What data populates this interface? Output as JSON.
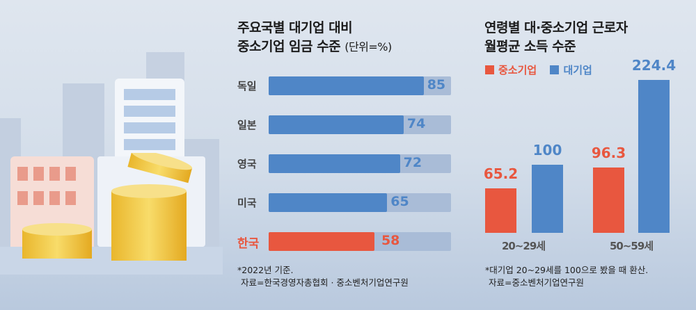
{
  "colors": {
    "sme": "#e8573f",
    "large": "#4f86c7",
    "track": "#a9bcd7"
  },
  "illustration": {
    "icons": [
      "city-buildings-icon",
      "gold-coin-stacks-icon"
    ]
  },
  "chart_data": [
    {
      "type": "bar",
      "orientation": "horizontal",
      "title_line1": "주요국별 대기업 대비",
      "title_line2": "중소기업 임금 수준",
      "unit": "(단위=%)",
      "categories": [
        "독일",
        "일본",
        "영국",
        "미국",
        "한국"
      ],
      "values": [
        85,
        74,
        72,
        65,
        58
      ],
      "xlim": [
        0,
        100
      ],
      "highlight": "한국",
      "note1": "*2022년 기준.",
      "note2": "자료=한국경영자총협회 · 중소벤처기업연구원"
    },
    {
      "type": "bar",
      "orientation": "vertical",
      "title_line1": "연령별 대·중소기업 근로자",
      "title_line2": "월평균 소득 수준",
      "categories": [
        "20~29세",
        "50~59세"
      ],
      "series": [
        {
          "name": "중소기업",
          "values": [
            65.2,
            96.3
          ]
        },
        {
          "name": "대기업",
          "values": [
            100,
            224.4
          ]
        }
      ],
      "ylim": [
        0,
        224.4
      ],
      "note1": "*대기업 20~29세를 100으로 봤을 때 환산.",
      "note2": "자료=중소벤처기업연구원"
    }
  ]
}
